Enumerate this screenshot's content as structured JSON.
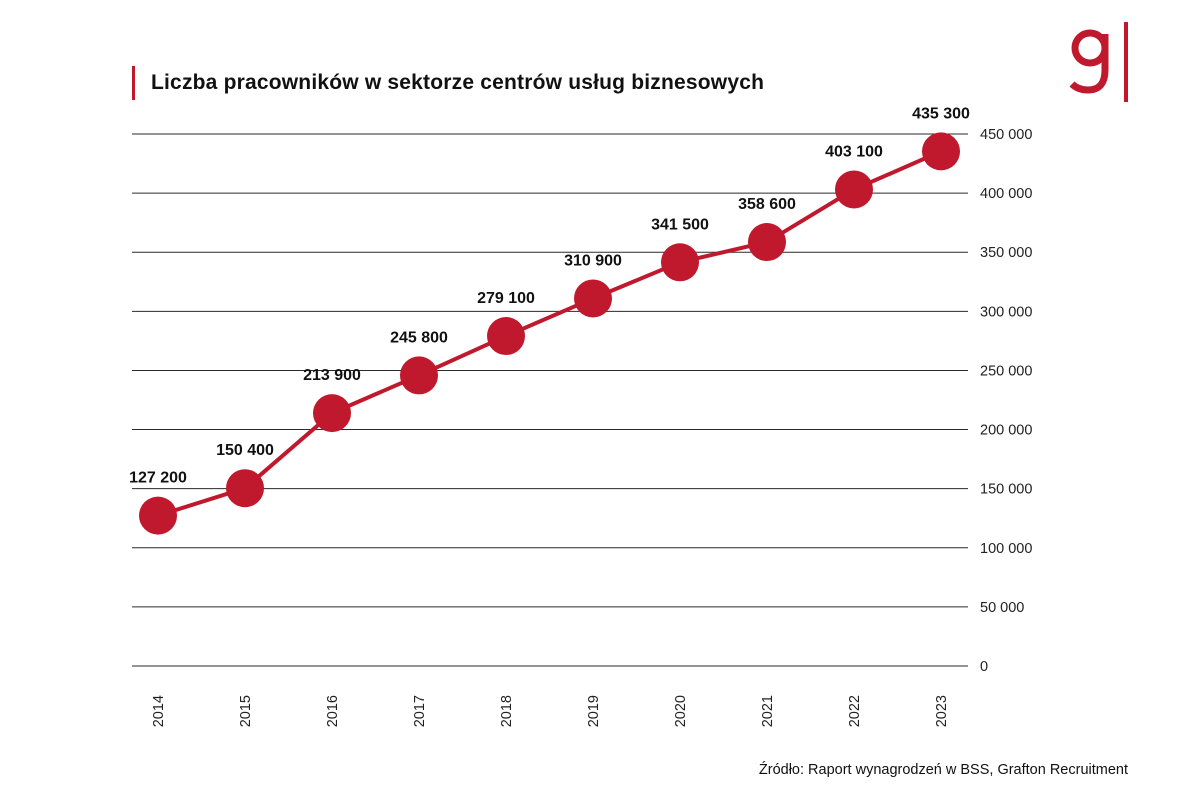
{
  "brand": {
    "accent": "#c0182d",
    "logo_icon": "grafton-g-logo"
  },
  "source_text": "Źródło: Raport wynagrodzeń w  BSS, Grafton Recruitment",
  "chart_data": {
    "type": "line",
    "title": "Liczba pracowników w sektorze centrów usług biznesowych",
    "xlabel": "",
    "ylabel": "",
    "categories": [
      "2014",
      "2015",
      "2016",
      "2017",
      "2018",
      "2019",
      "2020",
      "2021",
      "2022",
      "2023"
    ],
    "series": [
      {
        "name": "Liczba pracowników",
        "values": [
          127200,
          150400,
          213900,
          245800,
          279100,
          310900,
          341500,
          358600,
          403100,
          435300
        ],
        "labels": [
          "127 200",
          "150 400",
          "213 900",
          "245 800",
          "279 100",
          "310 900",
          "341 500",
          "358 600",
          "403 100",
          "435 300"
        ],
        "color": "#c0182d"
      }
    ],
    "ylim": [
      0,
      450000
    ],
    "yticks": [
      0,
      50000,
      100000,
      150000,
      200000,
      250000,
      300000,
      350000,
      400000,
      450000
    ],
    "ytick_labels": [
      "0",
      "50 000",
      "100 000",
      "150 000",
      "200 000",
      "250 000",
      "300 000",
      "350 000",
      "400 000",
      "450 000"
    ],
    "y_axis_side": "right",
    "grid": true,
    "legend": "none"
  }
}
